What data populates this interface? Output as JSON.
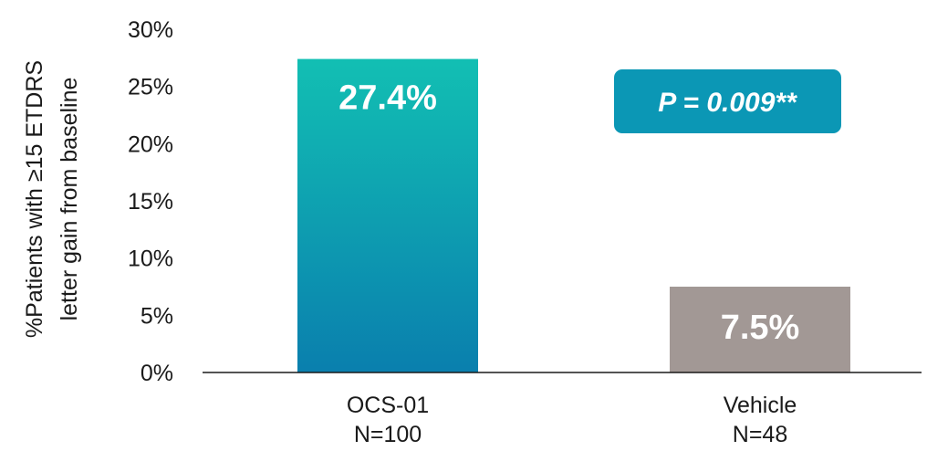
{
  "chart_data": {
    "type": "bar",
    "categories": [
      "OCS-01",
      "Vehicle"
    ],
    "category_sublabels": [
      "N=100",
      "N=48"
    ],
    "values": [
      27.4,
      7.5
    ],
    "data_labels": [
      "27.4%",
      "7.5%"
    ],
    "bar_colors": [
      [
        "#12bfb3",
        "#0a7fae"
      ],
      [
        "#a29895",
        "#a29895"
      ]
    ],
    "ylabel_lines": [
      "%Patients with ≥15 ETDRS",
      "letter gain from baseline"
    ],
    "yticks": [
      0,
      5,
      10,
      15,
      20,
      25,
      30
    ],
    "ytick_labels": [
      "0%",
      "5%",
      "10%",
      "15%",
      "20%",
      "25%",
      "30%"
    ],
    "ylim": [
      0,
      30
    ],
    "grid": false,
    "annotation": {
      "text": "P = 0.009**",
      "color": "#0b97b5",
      "placement": "top-right"
    }
  }
}
